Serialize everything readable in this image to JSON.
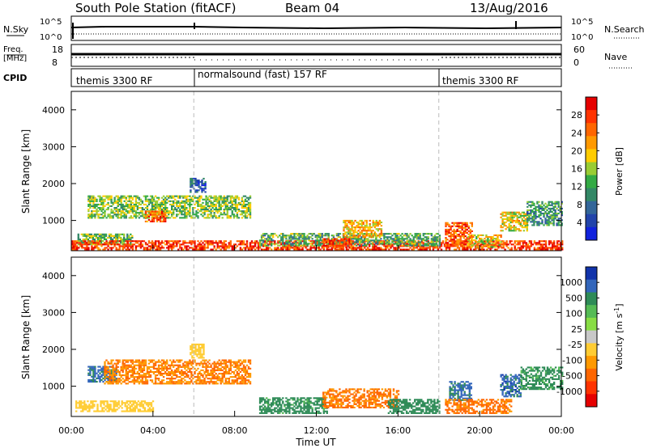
{
  "header": {
    "station": "South Pole Station (fitACF)",
    "beam": "Beam 04",
    "date": "13/Aug/2016"
  },
  "sky_panel": {
    "left_label": "N.Sky",
    "right_label": "N.Search",
    "top_tick": "10^5",
    "bottom_tick": "10^0"
  },
  "freq_panel": {
    "left_label_line1": "Freq.",
    "left_label_line2": "[MHz]",
    "left_ticks": [
      "18",
      "8"
    ],
    "right_label": "Nave",
    "right_ticks": [
      "60",
      "0"
    ]
  },
  "cpid": {
    "label": "CPID",
    "segments": [
      {
        "start_hour": 0,
        "end_hour": 6,
        "text": "themis 3300 RF"
      },
      {
        "start_hour": 6,
        "end_hour": 18,
        "text": "normalsound (fast) 157 RF"
      },
      {
        "start_hour": 18,
        "end_hour": 24,
        "text": "themis 3300 RF"
      }
    ]
  },
  "power_colorbar": {
    "label": "Power [dB]",
    "ticks": [
      "28",
      "24",
      "20",
      "16",
      "12",
      "8",
      "4"
    ],
    "colors": [
      "#e60000",
      "#ff3300",
      "#ff6600",
      "#ff9900",
      "#ffcc00",
      "#99cc33",
      "#33aa44",
      "#338866",
      "#336699",
      "#2244aa",
      "#1122dd"
    ]
  },
  "velocity_colorbar": {
    "label_main": "Velocity [m s",
    "label_sup": "-1",
    "label_end": "]",
    "ticks": [
      "1000",
      "500",
      "100",
      "25",
      "-25",
      "-100",
      "-500",
      "-1000"
    ],
    "colors": [
      "#1133aa",
      "#3366bb",
      "#2e8b57",
      "#55bb55",
      "#88dd44",
      "#c8c8c8",
      "#ffcc33",
      "#ff9900",
      "#ff6600",
      "#ff3300",
      "#e60000"
    ]
  },
  "x_axis": {
    "label": "Time UT",
    "ticks": [
      "00:00",
      "04:00",
      "08:00",
      "12:00",
      "16:00",
      "20:00",
      "00:00"
    ]
  },
  "chart_data": [
    {
      "type": "heatmap",
      "name": "Power",
      "x_unit": "hours UT",
      "xlim": [
        0,
        24
      ],
      "y_unit": "km",
      "ylim": [
        180,
        4500
      ],
      "ylabel": "Slant Range [km]",
      "yticks": [
        1000,
        2000,
        3000,
        4000
      ],
      "zlim": [
        0,
        30
      ],
      "regions": [
        {
          "t0": 0.8,
          "t1": 8.8,
          "r0": 1050,
          "r1": 1650,
          "value": 14
        },
        {
          "t0": 3.6,
          "t1": 4.6,
          "r0": 950,
          "r1": 1250,
          "value": 24
        },
        {
          "t0": 0.3,
          "t1": 3.0,
          "r0": 330,
          "r1": 620,
          "value": 13
        },
        {
          "t0": 0.0,
          "t1": 24.0,
          "r0": 190,
          "r1": 460,
          "value": 26
        },
        {
          "t0": 9.2,
          "t1": 18.0,
          "r0": 300,
          "r1": 620,
          "value": 12
        },
        {
          "t0": 12.3,
          "t1": 13.7,
          "r0": 250,
          "r1": 500,
          "value": 25
        },
        {
          "t0": 13.3,
          "t1": 15.2,
          "r0": 520,
          "r1": 1000,
          "value": 19
        },
        {
          "t0": 18.3,
          "t1": 19.6,
          "r0": 280,
          "r1": 950,
          "value": 24
        },
        {
          "t0": 19.4,
          "t1": 21.0,
          "r0": 260,
          "r1": 620,
          "value": 18
        },
        {
          "t0": 21.0,
          "t1": 22.3,
          "r0": 700,
          "r1": 1200,
          "value": 17
        },
        {
          "t0": 22.3,
          "t1": 24.0,
          "r0": 850,
          "r1": 1500,
          "value": 10
        },
        {
          "t0": 5.8,
          "t1": 6.6,
          "r0": 1750,
          "r1": 2150,
          "value": 6
        }
      ]
    },
    {
      "type": "heatmap",
      "name": "Velocity",
      "x_unit": "hours UT",
      "xlim": [
        0,
        24
      ],
      "y_unit": "km",
      "ylim": [
        180,
        4500
      ],
      "ylabel": "Slant Range [km]",
      "yticks": [
        1000,
        2000,
        3000,
        4000
      ],
      "regions": [
        {
          "t0": 0.8,
          "t1": 2.2,
          "r0": 1100,
          "r1": 1550,
          "value": 600
        },
        {
          "t0": 1.6,
          "t1": 8.8,
          "r0": 1050,
          "r1": 1700,
          "value": -250
        },
        {
          "t0": 0.2,
          "t1": 4.0,
          "r0": 300,
          "r1": 600,
          "value": -60
        },
        {
          "t0": 9.2,
          "t1": 12.5,
          "r0": 250,
          "r1": 700,
          "value": 180
        },
        {
          "t0": 12.3,
          "t1": 16.0,
          "r0": 400,
          "r1": 900,
          "value": -300
        },
        {
          "t0": 15.5,
          "t1": 18.0,
          "r0": 250,
          "r1": 650,
          "value": 200
        },
        {
          "t0": 18.5,
          "t1": 19.6,
          "r0": 600,
          "r1": 1100,
          "value": 600
        },
        {
          "t0": 18.3,
          "t1": 21.5,
          "r0": 250,
          "r1": 650,
          "value": -300
        },
        {
          "t0": 21.0,
          "t1": 22.0,
          "r0": 700,
          "r1": 1300,
          "value": 700
        },
        {
          "t0": 22.0,
          "t1": 24.0,
          "r0": 900,
          "r1": 1500,
          "value": 150
        },
        {
          "t0": 5.8,
          "t1": 6.5,
          "r0": 1750,
          "r1": 2150,
          "value": -60
        }
      ]
    }
  ]
}
